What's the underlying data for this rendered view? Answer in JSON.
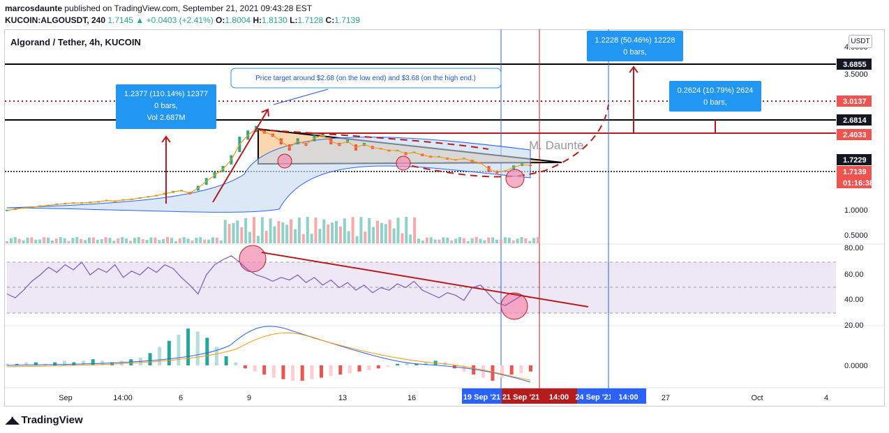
{
  "header": {
    "publisher": "marcosdaunte",
    "published_line": "published on TradingView.com, September 21, 2021 09:43:28 EST",
    "symbol_line": "KUCOIN:ALGOUSDT, 240",
    "last": "1.7145",
    "change": "▲ +0.0403 (+2.41%)",
    "open_label": "O:",
    "open": "1.8004",
    "high_label": "H:",
    "high": "1.8130",
    "low_label": "L:",
    "low": "1.7128",
    "close_label": "C:",
    "close": "1.7139"
  },
  "pane_title": "Algorand / Tether, 4h, KUCOIN",
  "currency_button": "USDT",
  "footer": {
    "brand": "TradingView"
  },
  "colors": {
    "up": "#26a69a",
    "down": "#ef5350",
    "line_red": "#b71c1c",
    "callout": "#2196f3",
    "rsi_band": "#ede7f6"
  },
  "chart_data": [
    {
      "type": "candlestick",
      "title": "Algorand / Tether, 4h, KUCOIN",
      "y_ticks": [
        "4.0000",
        "3.5000",
        "1.0000",
        "0.5000"
      ],
      "x_ticks": [
        "Sep",
        "14:00",
        "6",
        "9",
        "13",
        "16",
        "27",
        "Oct",
        "4"
      ],
      "price_labels": [
        {
          "text": "3.6855",
          "style": "black"
        },
        {
          "text": "3.0137",
          "style": "red"
        },
        {
          "text": "2.6814",
          "style": "black"
        },
        {
          "text": "2.4033",
          "style": "red"
        },
        {
          "text": "1.7229",
          "style": "black"
        },
        {
          "text": "1.7139",
          "style": "red"
        },
        {
          "text": "01:16:38",
          "style": "red"
        }
      ],
      "time_labels": [
        {
          "text": "19 Sep '21",
          "style": "blue"
        },
        {
          "text": "21 Sep '21",
          "style": "red"
        },
        {
          "text": "14:00",
          "style": "red"
        },
        {
          "text": "24 Sep '21",
          "style": "blue"
        },
        {
          "text": "14:00",
          "style": "blue"
        }
      ],
      "close_series": [
        0.98,
        1.0,
        1.02,
        1.03,
        1.05,
        1.06,
        1.08,
        1.09,
        1.1,
        1.1,
        1.11,
        1.12,
        1.14,
        1.13,
        1.15,
        1.16,
        1.18,
        1.2,
        1.22,
        1.25,
        1.28,
        1.3,
        1.26,
        1.34,
        1.45,
        1.55,
        1.65,
        1.8,
        2.05,
        2.2,
        2.3,
        2.25,
        2.2,
        2.1,
        2.0,
        2.1,
        2.05,
        2.15,
        2.2,
        2.1,
        2.05,
        2.1,
        2.0,
        2.05,
        2.0,
        1.98,
        1.95,
        1.95,
        1.9,
        1.92,
        1.88,
        1.85,
        1.85,
        1.82,
        1.8,
        1.82,
        1.78,
        1.75,
        1.65,
        1.6,
        1.62,
        1.68,
        1.72,
        1.71
      ],
      "annotations": [
        {
          "text": "1.2377 (110.14%) 12377"
        },
        {
          "text": "0 bars,"
        },
        {
          "text": "Vol 2.687M"
        },
        {
          "text": "Price target around $2.68 (on the low end) and $3.68 (on the high end.)"
        },
        {
          "text": "1.2228 (50.46%) 12228"
        },
        {
          "text": "0 bars,"
        },
        {
          "text": "0.2624 (10.79%) 2624"
        },
        {
          "text": "0 bars,"
        },
        {
          "text": "M. Daunte"
        }
      ]
    },
    {
      "type": "line",
      "title": "",
      "y_ticks": [
        "80.00",
        "60.00",
        "40.00",
        "20.00"
      ],
      "ylim": [
        20,
        80
      ],
      "rsi_values": [
        45,
        42,
        48,
        55,
        60,
        66,
        62,
        68,
        64,
        70,
        60,
        65,
        62,
        68,
        58,
        63,
        60,
        66,
        62,
        68,
        65,
        58,
        52,
        45,
        60,
        68,
        72,
        75,
        70,
        64,
        60,
        58,
        55,
        58,
        56,
        60,
        54,
        58,
        52,
        56,
        50,
        54,
        48,
        52,
        46,
        50,
        48,
        53,
        50,
        55,
        48,
        45,
        42,
        46,
        44,
        40,
        50,
        52,
        45,
        38,
        36,
        40,
        44,
        42
      ]
    },
    {
      "type": "bar",
      "title": "",
      "y_ticks": [
        "0.0000"
      ],
      "histogram": [
        0.1,
        0.1,
        0.2,
        0.2,
        0.1,
        0.2,
        0.3,
        0.2,
        0.3,
        0.4,
        0.3,
        0.2,
        0.3,
        0.4,
        0.5,
        0.8,
        1.2,
        1.6,
        2.0,
        2.4,
        2.2,
        1.8,
        1.2,
        0.6,
        0.2,
        -0.2,
        -0.4,
        -0.6,
        -0.8,
        -0.9,
        -1.0,
        -1.0,
        -0.9,
        -0.8,
        -0.7,
        -0.6,
        -0.5,
        -0.4,
        -0.3,
        -0.2,
        -0.1,
        0.1,
        0.2,
        0.1,
        0.2,
        0.3,
        0.2,
        -0.2,
        -0.4,
        -0.6,
        -0.8,
        -1.0,
        -0.8,
        -0.6,
        -0.5,
        -0.4
      ]
    }
  ]
}
